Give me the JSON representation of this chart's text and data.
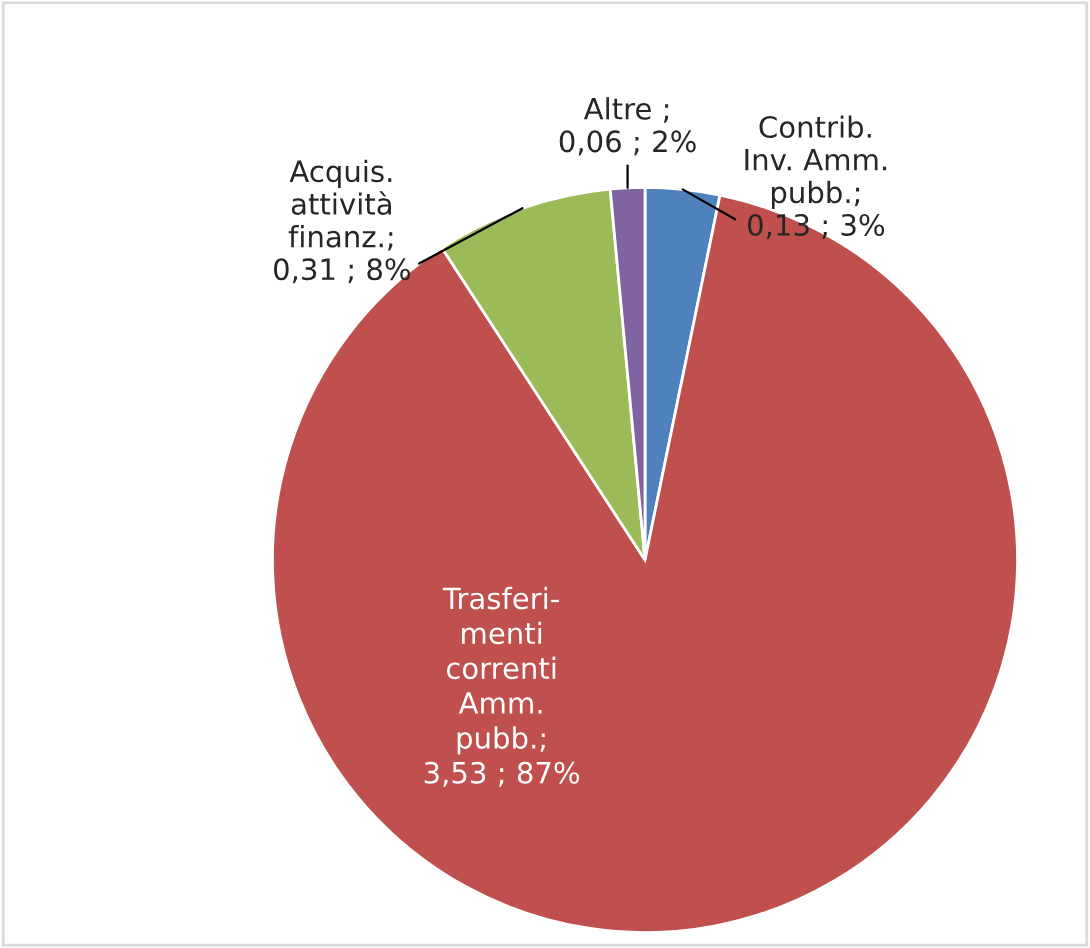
{
  "chart_data": {
    "type": "pie",
    "categories": [
      "Contrib.\nInv. Amm.\npubb.",
      "Trasferi-\nmenti\ncorrenti\nAmm.\npubb.",
      "Acquis.\nattività\nfinanz.",
      "Altre"
    ],
    "values": [
      0.13,
      3.53,
      0.31,
      0.06
    ],
    "value_labels": [
      ";\n0,13 ; 3%",
      ";\n3,53 ; 87%",
      ";\n0,31 ; 8%",
      " ;\n0,06 ; 2%"
    ],
    "colors": [
      "#4f81bd",
      "#c0504d",
      "#9bbb59",
      "#8064a2"
    ],
    "legend": false
  }
}
